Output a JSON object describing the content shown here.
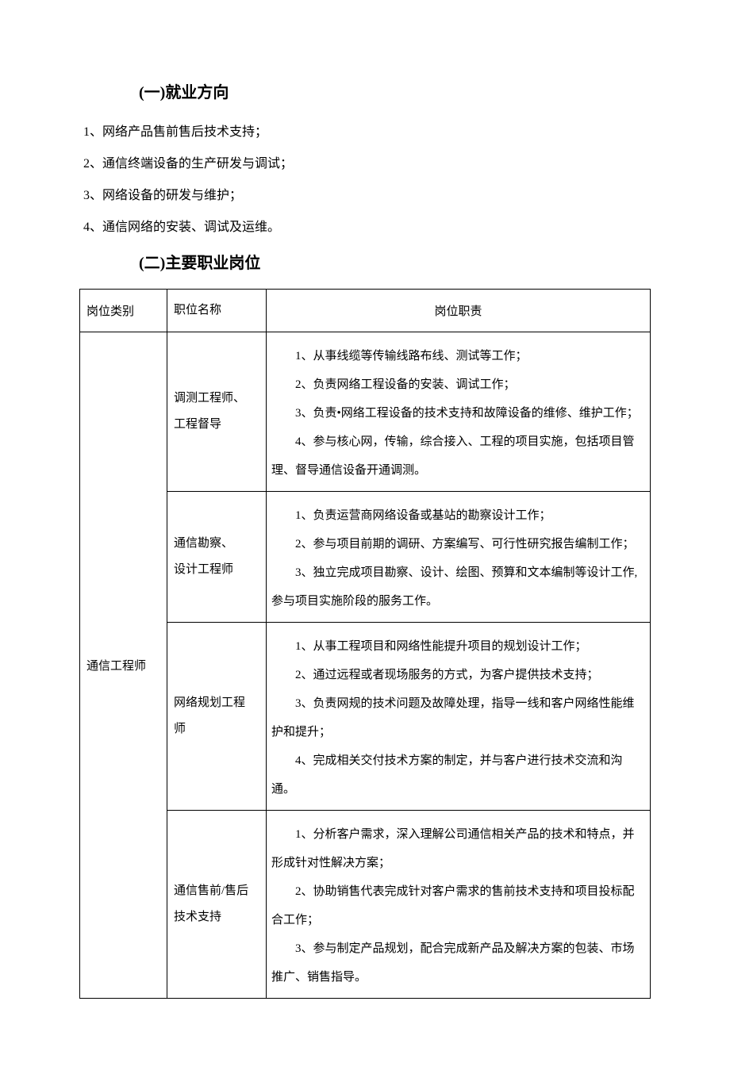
{
  "section1": {
    "heading": "(一)就业方向",
    "items": [
      "1、网络产品售前售后技术支持；",
      "2、通信终端设备的生产研发与调试；",
      "3、网络设备的研发与维护；",
      "4、通信网络的安装、调试及运维。"
    ]
  },
  "section2": {
    "heading": "(二)主要职业岗位"
  },
  "table": {
    "headers": {
      "category": "岗位类别",
      "position": "职位名称",
      "duty": "岗位职责"
    },
    "category": "通信工程师",
    "rows": [
      {
        "position_line1": "调测工程师、",
        "position_line2": "工程督导",
        "duty_l1": "1、从事线缆等传输线路布线、测试等工作；",
        "duty_l2": "2、负责网络工程设备的安装、调试工作；",
        "duty_l3": "3、负责•网络工程设备的技术支持和故障设备的维修、维护工作；",
        "duty_l4": "4、参与核心网，传输，综合接入、工程的项目实施，包括项目管",
        "duty_l5": "理、督导通信设备开通调测。"
      },
      {
        "position_line1": "通信勘察、",
        "position_line2": "设计工程师",
        "duty_l1": "1、负责运营商网络设备或基站的勘察设计工作；",
        "duty_l2": "2、参与项目前期的调研、方案编写、可行性研究报告编制工作；",
        "duty_l3": "3、独立完成项目勘察、设计、绘图、预算和文本编制等设计工作,",
        "duty_l4": "参与项目实施阶段的服务工作。"
      },
      {
        "position_line1": "网络规划工程",
        "position_line2": "师",
        "duty_l1": "1、从事工程项目和网络性能提升项目的规划设计工作；",
        "duty_l2": "2、通过远程或者现场服务的方式，为客户提供技术支持；",
        "duty_l3": "3、负责网规的技术问题及故障处理，指导一线和客户网络性能维",
        "duty_l4": "护和提升；",
        "duty_l5": "4、完成相关交付技术方案的制定，并与客户进行技术交流和沟通。"
      },
      {
        "position_line1": "通信售前/售后",
        "position_line2": "技术支持",
        "duty_l1": "1、分析客户需求，深入理解公司通信相关产品的技术和特点，并",
        "duty_l2": "形成针对性解决方案；",
        "duty_l3": "2、协助销售代表完成针对客户需求的售前技术支持和项目投标配",
        "duty_l4": "合工作；",
        "duty_l5": "3、参与制定产品规划，配合完成新产品及解决方案的包装、市场",
        "duty_l6": "推广、销售指导。"
      }
    ]
  },
  "style": {
    "background_color": "#ffffff",
    "text_color": "#000000",
    "border_color": "#000000",
    "heading_fontsize": 20,
    "body_fontsize": 16,
    "table_fontsize": 15,
    "font_family": "SimSun"
  }
}
